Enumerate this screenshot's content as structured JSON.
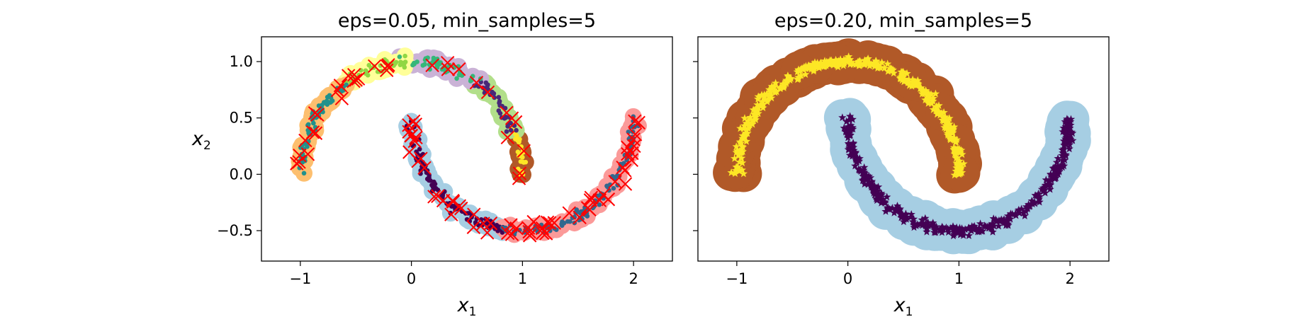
{
  "chart_data": [
    {
      "type": "scatter",
      "title": "eps=0.05, min_samples=5",
      "xlabel": "x",
      "xlabel_sub": "1",
      "ylabel": "x",
      "ylabel_sub": "2",
      "xlim": [
        -1.35,
        2.35
      ],
      "ylim": [
        -0.77,
        1.22
      ],
      "xticks": [
        -1,
        0,
        1,
        2
      ],
      "xtick_labels": [
        "−1",
        "0",
        "1",
        "2"
      ],
      "yticks": [
        -0.5,
        0.0,
        0.5,
        1.0
      ],
      "ytick_labels": [
        "−0.5",
        "0.0",
        "0.5",
        "1.0"
      ],
      "marker": "o",
      "anomaly_marker": "x",
      "anomaly_color": "#ff0000",
      "clusters": [
        {
          "halo": "#b15928",
          "core": "#fde725",
          "t": [
            0.0,
            0.13
          ]
        },
        {
          "halo": "#b2df8a",
          "core": "#482878",
          "t": [
            0.13,
            0.3
          ]
        },
        {
          "halo": "#cab2d6",
          "core": "#35b779",
          "t": [
            0.3,
            0.52
          ]
        },
        {
          "halo": "#ffff99",
          "core": "#90d743",
          "t": [
            0.52,
            0.7
          ]
        },
        {
          "halo": "#fdbf6f",
          "core": "#21918c",
          "t": [
            0.7,
            1.0
          ]
        },
        {
          "halo": "#a6cee3",
          "core": "#440154",
          "t2": [
            0.0,
            0.45
          ]
        },
        {
          "halo": "#fb9a99",
          "core": "#31688e",
          "t2": [
            0.45,
            1.0
          ]
        }
      ]
    },
    {
      "type": "scatter",
      "title": "eps=0.20, min_samples=5",
      "xlabel": "x",
      "xlabel_sub": "1",
      "xlim": [
        -1.35,
        2.35
      ],
      "ylim": [
        -0.77,
        1.22
      ],
      "xticks": [
        -1,
        0,
        1,
        2
      ],
      "xtick_labels": [
        "−1",
        "0",
        "1",
        "2"
      ],
      "yticks": [
        -0.5,
        0.0,
        0.5,
        1.0
      ],
      "marker": "*",
      "clusters": [
        {
          "halo": "#b15928",
          "core": "#fde725",
          "moon": "upper"
        },
        {
          "halo": "#a6cee3",
          "core": "#440154",
          "moon": "lower"
        }
      ]
    }
  ]
}
